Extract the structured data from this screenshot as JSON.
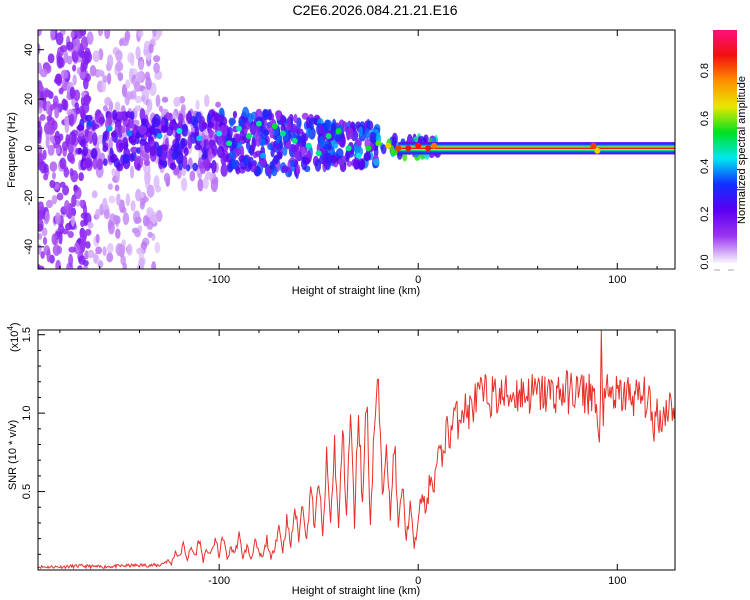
{
  "chart_data": [
    {
      "type": "heatmap",
      "title": "C2E6.2026.084.21.21.E16",
      "xlabel": "Height of straight line (km)",
      "ylabel": "Frequency (Hz)",
      "xlim": [
        -191,
        129
      ],
      "ylim": [
        -49,
        48
      ],
      "xticks": [
        -100,
        0,
        100
      ],
      "yticks": [
        40,
        20,
        0,
        -20,
        -40
      ],
      "colorbar": {
        "label": "Normalized spectral amplitude",
        "range": [
          0,
          1
        ],
        "ticks": [
          "0.0",
          "0.2",
          "0.4",
          "0.6",
          "0.8"
        ]
      },
      "colormap": [
        "#f4ecfc",
        "#9a33f0",
        "#5a00f0",
        "#1030ff",
        "#00e8f0",
        "#00e020",
        "#e8e800",
        "#ff9000",
        "#f01010",
        "#ff1080"
      ],
      "clusters": [
        {
          "x": [
            -191,
            -165
          ],
          "f": [
            -49,
            48
          ],
          "amp": 0.12,
          "count": 260
        },
        {
          "x": [
            -165,
            -130
          ],
          "f": [
            -49,
            48
          ],
          "amp": 0.05,
          "count": 220
        },
        {
          "x": [
            -130,
            -100
          ],
          "f": [
            -15,
            20
          ],
          "amp": 0.06,
          "count": 90
        },
        {
          "x": [
            -170,
            -100
          ],
          "f": [
            -8,
            14
          ],
          "amp": 0.2,
          "count": 230
        },
        {
          "x": [
            -100,
            -50
          ],
          "f": [
            -10,
            14
          ],
          "amp": 0.25,
          "count": 230
        },
        {
          "x": [
            -50,
            -20
          ],
          "f": [
            -8,
            10
          ],
          "amp": 0.28,
          "count": 130
        },
        {
          "x": [
            -20,
            10
          ],
          "f": [
            -3,
            4
          ],
          "amp": 0.4,
          "count": 60
        }
      ],
      "bright_points": [
        [
          -165,
          10,
          0.35
        ],
        [
          -155,
          8,
          0.4
        ],
        [
          -145,
          6,
          0.38
        ],
        [
          -130,
          5,
          0.4
        ],
        [
          -120,
          7,
          0.45
        ],
        [
          -110,
          4,
          0.42
        ],
        [
          -100,
          6,
          0.45
        ],
        [
          -95,
          2,
          0.5
        ],
        [
          -90,
          8,
          0.48
        ],
        [
          -85,
          5,
          0.52
        ],
        [
          -80,
          10,
          0.5
        ],
        [
          -78,
          -3,
          0.4
        ],
        [
          -72,
          9,
          0.55
        ],
        [
          -68,
          6,
          0.5
        ],
        [
          -62,
          3,
          0.5
        ],
        [
          -55,
          1,
          0.48
        ],
        [
          -50,
          -2,
          0.5
        ],
        [
          -45,
          5,
          0.52
        ],
        [
          -40,
          7,
          0.55
        ],
        [
          -35,
          0,
          0.5
        ],
        [
          -30,
          -3,
          0.45
        ],
        [
          -25,
          0,
          0.55
        ],
        [
          -20,
          2,
          0.6
        ],
        [
          -15,
          1,
          0.7
        ],
        [
          -10,
          0,
          0.85
        ],
        [
          -5,
          0,
          0.9
        ],
        [
          0,
          1,
          0.88
        ],
        [
          5,
          0,
          0.9
        ],
        [
          8,
          1,
          0.8
        ],
        [
          88,
          1,
          0.85
        ],
        [
          90,
          -1,
          0.7
        ]
      ],
      "tone_line": {
        "x": [
          -10,
          129
        ],
        "f": 0,
        "bands": [
          [
            2.5,
            0.2
          ],
          [
            1.8,
            0.35
          ],
          [
            1.2,
            0.5
          ],
          [
            0.7,
            0.7
          ],
          [
            0.3,
            0.88
          ]
        ]
      }
    },
    {
      "type": "line",
      "xlabel": "Height of straight line (km)",
      "ylabel": "SNR (10 * v/v)",
      "multiplier": "(x10",
      "multiplier_exp": "4",
      "multiplier_close": ")",
      "xlim": [
        -191,
        129
      ],
      "ylim": [
        0,
        1.53
      ],
      "xticks": [
        -100,
        0,
        100
      ],
      "yticks": [
        "0.5",
        "1.0",
        "1.5"
      ],
      "ytick_values": [
        0.5,
        1.0,
        1.5
      ],
      "color": "#e8302a",
      "x": [
        -191,
        -180,
        -170,
        -160,
        -150,
        -140,
        -130,
        -126,
        -124,
        -122,
        -120,
        -118,
        -116,
        -114,
        -112,
        -110,
        -108,
        -106,
        -104,
        -102,
        -100,
        -98,
        -96,
        -94,
        -92,
        -90,
        -88,
        -86,
        -84,
        -82,
        -80,
        -78,
        -76,
        -74,
        -72,
        -70,
        -68,
        -66,
        -64,
        -62,
        -60,
        -58,
        -56,
        -54,
        -52,
        -50,
        -48,
        -46,
        -44,
        -42,
        -40,
        -38,
        -36,
        -34,
        -32,
        -30,
        -28,
        -26,
        -24,
        -22,
        -20,
        -18,
        -16,
        -14,
        -12,
        -10,
        -8,
        -6,
        -4,
        -2,
        0,
        2,
        4,
        6,
        8,
        10,
        12,
        14,
        16,
        18,
        20,
        22,
        25,
        30,
        35,
        40,
        50,
        60,
        70,
        80,
        85,
        88,
        90,
        91,
        92,
        93,
        95,
        100,
        105,
        110,
        115,
        117,
        118,
        120,
        122,
        125,
        129
      ],
      "y": [
        0.02,
        0.02,
        0.025,
        0.02,
        0.025,
        0.03,
        0.03,
        0.06,
        0.04,
        0.12,
        0.08,
        0.16,
        0.07,
        0.14,
        0.09,
        0.2,
        0.06,
        0.13,
        0.1,
        0.2,
        0.09,
        0.22,
        0.07,
        0.14,
        0.11,
        0.22,
        0.08,
        0.15,
        0.07,
        0.18,
        0.1,
        0.08,
        0.2,
        0.06,
        0.16,
        0.28,
        0.12,
        0.32,
        0.15,
        0.4,
        0.2,
        0.45,
        0.18,
        0.55,
        0.25,
        0.6,
        0.2,
        0.7,
        0.3,
        0.8,
        0.25,
        0.9,
        0.35,
        1.0,
        0.3,
        1.05,
        0.4,
        1.15,
        0.3,
        0.95,
        1.17,
        0.45,
        0.9,
        0.3,
        0.85,
        0.25,
        0.55,
        0.2,
        0.4,
        0.15,
        0.3,
        0.5,
        0.35,
        0.6,
        0.55,
        0.75,
        0.7,
        0.9,
        0.85,
        1.0,
        0.95,
        1.05,
        1.0,
        1.1,
        1.12,
        1.1,
        1.13,
        1.12,
        1.13,
        1.14,
        1.12,
        1.15,
        0.9,
        0.75,
        1.58,
        1.0,
        1.12,
        1.1,
        1.12,
        1.1,
        1.1,
        1.0,
        0.9,
        1.02,
        0.95,
        1.05,
        1.05
      ]
    }
  ]
}
